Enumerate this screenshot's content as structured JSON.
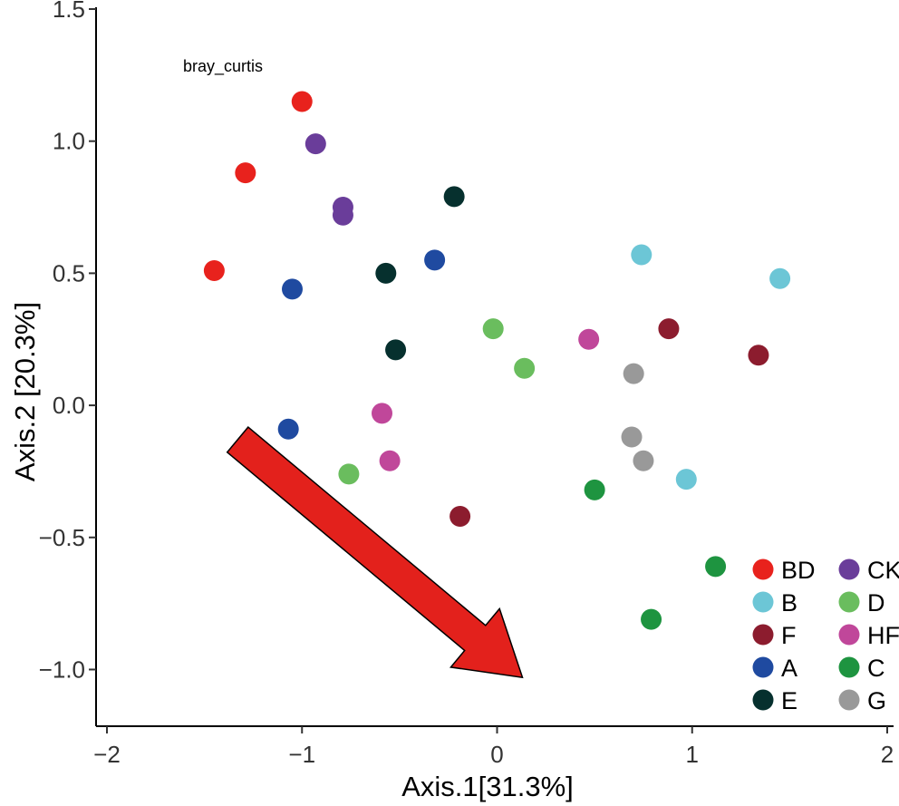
{
  "chart_data": {
    "type": "scatter",
    "title": "",
    "annotation": "bray_curtis",
    "xlabel": "Axis.1[31.3%]",
    "ylabel": "Axis.2 [20.3%]",
    "xlim": [
      -2.0,
      2.0
    ],
    "ylim": [
      -1.17,
      1.5
    ],
    "x_ticks": [
      -2,
      -1,
      0,
      1,
      2
    ],
    "x_tick_labels": [
      "−2",
      "−1",
      "0",
      "1",
      "2"
    ],
    "y_ticks": [
      1.5,
      1.0,
      0.5,
      0.0,
      -0.5,
      -1.0
    ],
    "y_tick_labels": [
      "1.5",
      "1.0",
      "0.5",
      "0.0",
      "−0.5",
      "−1.0"
    ],
    "grid": false,
    "legend_position": "bottom-right",
    "legend_columns": 2,
    "arrow": {
      "from": [
        -1.33,
        -0.13
      ],
      "to": [
        0.13,
        -1.03
      ],
      "color": "#e3211c"
    },
    "series": [
      {
        "name": "BD",
        "color": "#e8221d",
        "points": [
          [
            -1.0,
            1.15
          ],
          [
            -1.29,
            0.88
          ],
          [
            -1.45,
            0.51
          ]
        ]
      },
      {
        "name": "CK",
        "color": "#6a3d9a",
        "points": [
          [
            -0.93,
            0.99
          ],
          [
            -0.79,
            0.75
          ],
          [
            -0.79,
            0.72
          ]
        ]
      },
      {
        "name": "B",
        "color": "#6cc6d6",
        "points": [
          [
            0.74,
            0.57
          ],
          [
            1.45,
            0.48
          ],
          [
            0.97,
            -0.28
          ]
        ]
      },
      {
        "name": "D",
        "color": "#6abd5e",
        "points": [
          [
            -0.02,
            0.29
          ],
          [
            0.14,
            0.14
          ],
          [
            -0.76,
            -0.26
          ]
        ]
      },
      {
        "name": "F",
        "color": "#8c1c2e",
        "points": [
          [
            0.88,
            0.29
          ],
          [
            1.34,
            0.19
          ],
          [
            -0.19,
            -0.42
          ]
        ]
      },
      {
        "name": "HF",
        "color": "#c0479a",
        "points": [
          [
            0.47,
            0.25
          ],
          [
            -0.59,
            -0.03
          ],
          [
            -0.55,
            -0.21
          ]
        ]
      },
      {
        "name": "A",
        "color": "#1f4aa0",
        "points": [
          [
            -0.32,
            0.55
          ],
          [
            -1.05,
            0.44
          ],
          [
            -1.07,
            -0.09
          ]
        ]
      },
      {
        "name": "C",
        "color": "#1e9440",
        "points": [
          [
            0.5,
            -0.32
          ],
          [
            1.12,
            -0.61
          ],
          [
            0.79,
            -0.81
          ]
        ]
      },
      {
        "name": "E",
        "color": "#06302e",
        "points": [
          [
            -0.22,
            0.79
          ],
          [
            -0.57,
            0.5
          ],
          [
            -0.52,
            0.21
          ]
        ]
      },
      {
        "name": "G",
        "color": "#999999",
        "points": [
          [
            0.7,
            0.12
          ],
          [
            0.69,
            -0.12
          ],
          [
            0.75,
            -0.21
          ]
        ]
      }
    ]
  }
}
